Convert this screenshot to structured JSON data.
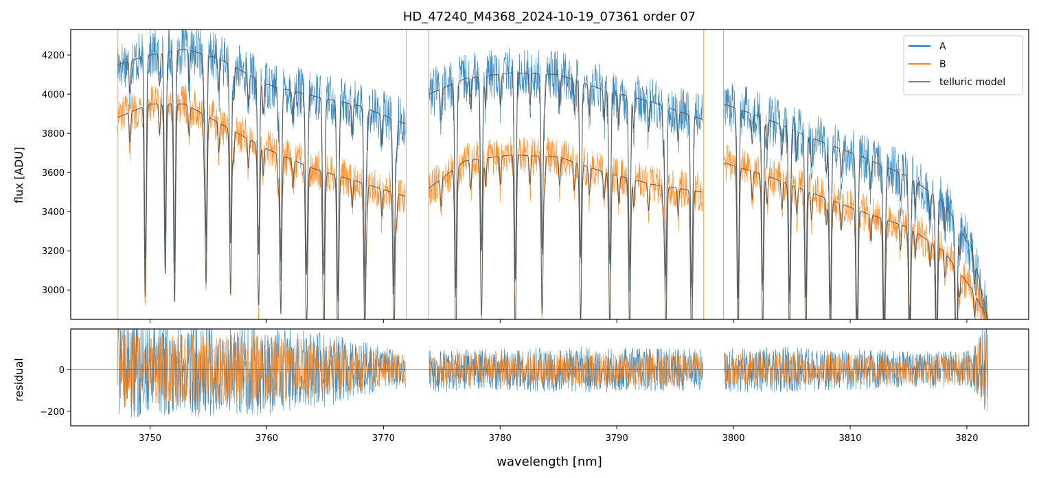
{
  "chart_data": [
    {
      "panel": "top",
      "type": "line",
      "title": "HD_47240_M4368_2024-10-19_07361  order 07",
      "xlabel": "",
      "ylabel": "flux [ADU]",
      "xlim": [
        3743.2,
        3825.3
      ],
      "ylim": [
        2850,
        4330
      ],
      "yticks": [
        3000,
        3200,
        3400,
        3600,
        3800,
        4000,
        4200
      ],
      "ytick_labels": [
        "3000",
        "3200",
        "3400",
        "3600",
        "3800",
        "4000",
        "4200"
      ],
      "xticks": [
        3750,
        3760,
        3770,
        3780,
        3790,
        3800,
        3810,
        3820
      ],
      "legend_position": "upper right",
      "gaps": [
        [
          3771.9,
          3773.9
        ],
        [
          3797.4,
          3799.2
        ]
      ],
      "series": [
        {
          "name": "A",
          "color": "#1f77b4",
          "x": [
            3747.2,
            3750,
            3753,
            3756,
            3760,
            3764,
            3768,
            3771.8,
            3773.9,
            3777,
            3781,
            3785,
            3789,
            3793,
            3797.4,
            3799.2,
            3803,
            3807,
            3811,
            3815,
            3818,
            3820.5,
            3821.8
          ],
          "y": [
            4150,
            4200,
            4230,
            4180,
            4050,
            3990,
            3940,
            3850,
            4000,
            4080,
            4110,
            4100,
            4020,
            3960,
            3870,
            3950,
            3870,
            3770,
            3680,
            3580,
            3450,
            3200,
            2850
          ]
        },
        {
          "name": "B",
          "color": "#ff7f0e",
          "x": [
            3747.2,
            3750,
            3753,
            3756,
            3760,
            3764,
            3768,
            3771.8,
            3773.9,
            3777,
            3781,
            3785,
            3789,
            3793,
            3797.4,
            3799.2,
            3803,
            3807,
            3811,
            3815,
            3818,
            3820.5,
            3821.8
          ],
          "y": [
            3880,
            3950,
            3950,
            3850,
            3720,
            3620,
            3550,
            3480,
            3520,
            3660,
            3690,
            3680,
            3600,
            3540,
            3500,
            3650,
            3580,
            3490,
            3400,
            3320,
            3200,
            3000,
            2850
          ]
        },
        {
          "name": "telluric model",
          "color": "#555555",
          "x": [
            3747.2,
            3750,
            3753,
            3756,
            3760,
            3764,
            3768,
            3771.8,
            3773.9,
            3777,
            3781,
            3785,
            3789,
            3793,
            3797.4,
            3799.2,
            3803,
            3807,
            3811,
            3815,
            3818,
            3820.5,
            3821.8
          ],
          "y": [
            4150,
            4200,
            4230,
            4180,
            4050,
            3990,
            3940,
            3850,
            4000,
            4080,
            4110,
            4100,
            4020,
            3960,
            3870,
            3950,
            3870,
            3770,
            3680,
            3580,
            3450,
            3200,
            3050
          ]
        }
      ]
    },
    {
      "panel": "bottom",
      "type": "line",
      "title": "",
      "xlabel": "wavelength [nm]",
      "ylabel": "residual",
      "xlim": [
        3743.2,
        3825.3
      ],
      "ylim": [
        -270,
        195
      ],
      "yticks": [
        -200,
        0
      ],
      "ytick_labels": [
        "−200",
        "0"
      ],
      "xticks": [
        3750,
        3760,
        3770,
        3780,
        3790,
        3800,
        3810,
        3820
      ],
      "xtick_labels": [
        "3750",
        "3760",
        "3770",
        "3780",
        "3790",
        "3800",
        "3810",
        "3820"
      ],
      "zero_line": 0,
      "series": [
        {
          "name": "A",
          "color": "#1f77b4",
          "x": [
            3747.2,
            3750,
            3755,
            3760,
            3765,
            3771.8,
            3773.9,
            3780,
            3785,
            3790,
            3797.4,
            3799.2,
            3805,
            3810,
            3815,
            3820.5,
            3821.8
          ],
          "y_spread": [
            260,
            220,
            230,
            220,
            180,
            90,
            110,
            100,
            110,
            110,
            100,
            110,
            110,
            100,
            90,
            90,
            260
          ]
        },
        {
          "name": "B",
          "color": "#ff7f0e",
          "x": [
            3747.2,
            3750,
            3755,
            3760,
            3765,
            3771.8,
            3773.9,
            3780,
            3785,
            3790,
            3797.4,
            3799.2,
            3805,
            3810,
            3815,
            3820.5,
            3821.8
          ],
          "y_spread": [
            200,
            170,
            180,
            170,
            140,
            70,
            80,
            80,
            80,
            80,
            80,
            80,
            80,
            75,
            70,
            80,
            220
          ]
        }
      ]
    }
  ]
}
